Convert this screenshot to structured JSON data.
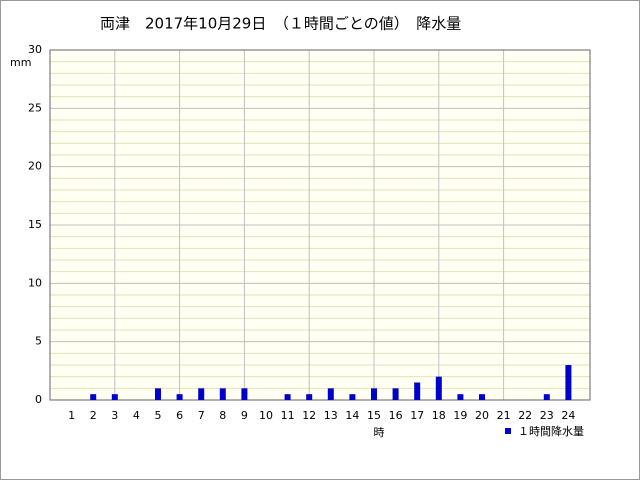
{
  "chart_data": {
    "type": "bar",
    "title": "両津　2017年10月29日　（１時間ごとの値）　降水量",
    "y_label": "mm",
    "x_label": "時",
    "x": [
      1,
      2,
      3,
      4,
      5,
      6,
      7,
      8,
      9,
      10,
      11,
      12,
      13,
      14,
      15,
      16,
      17,
      18,
      19,
      20,
      21,
      22,
      23,
      24
    ],
    "series": [
      {
        "name": "１時間降水量",
        "color": "#0000cc",
        "values": [
          0,
          0.5,
          0.5,
          0,
          1,
          0.5,
          1,
          1,
          1,
          0,
          0.5,
          0.5,
          1,
          0.5,
          1,
          1,
          1.5,
          2,
          0.5,
          0.5,
          0,
          0,
          0.5,
          3
        ]
      }
    ],
    "xlim": [
      0,
      25
    ],
    "xticks": [
      1,
      2,
      3,
      4,
      5,
      6,
      7,
      8,
      9,
      10,
      11,
      12,
      13,
      14,
      15,
      16,
      17,
      18,
      19,
      20,
      21,
      22,
      23,
      24
    ],
    "xgrid": [
      3,
      6,
      9,
      12,
      15,
      18,
      21
    ],
    "ylim": [
      0,
      30
    ],
    "yticks": [
      0,
      5,
      10,
      15,
      20,
      25,
      30
    ],
    "yminorticks": [
      1,
      2,
      3,
      4,
      6,
      7,
      8,
      9,
      11,
      12,
      13,
      14,
      16,
      17,
      18,
      19,
      21,
      22,
      23,
      24,
      26,
      27,
      28,
      29
    ],
    "grid": true
  }
}
